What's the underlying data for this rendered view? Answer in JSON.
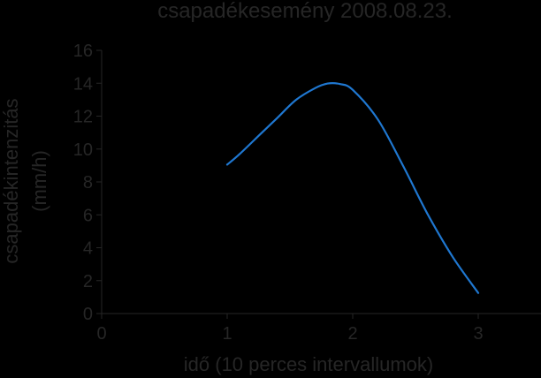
{
  "chart_data": {
    "type": "line",
    "title": "csapadékesemény 2008.08.23.",
    "xlabel": "idő (10 perces intervallumok)",
    "ylabel_lines": [
      "csapadékintenzitás",
      "(mm/h)"
    ],
    "xlim": [
      0,
      3.5
    ],
    "ylim": [
      0,
      16
    ],
    "x_ticks": [
      0,
      1,
      2,
      3
    ],
    "y_ticks": [
      0,
      2,
      4,
      6,
      8,
      10,
      12,
      14,
      16
    ],
    "grid": false,
    "legend": "none",
    "series": [
      {
        "color": "#1f77d0",
        "x": [
          1.0,
          1.1,
          1.25,
          1.4,
          1.55,
          1.7,
          1.8,
          1.9,
          2.0,
          2.2,
          2.4,
          2.6,
          2.8,
          3.0
        ],
        "y": [
          9.05,
          9.7,
          10.8,
          11.9,
          13.0,
          13.7,
          13.98,
          13.95,
          13.6,
          11.8,
          9.0,
          6.0,
          3.4,
          1.25
        ]
      }
    ]
  }
}
